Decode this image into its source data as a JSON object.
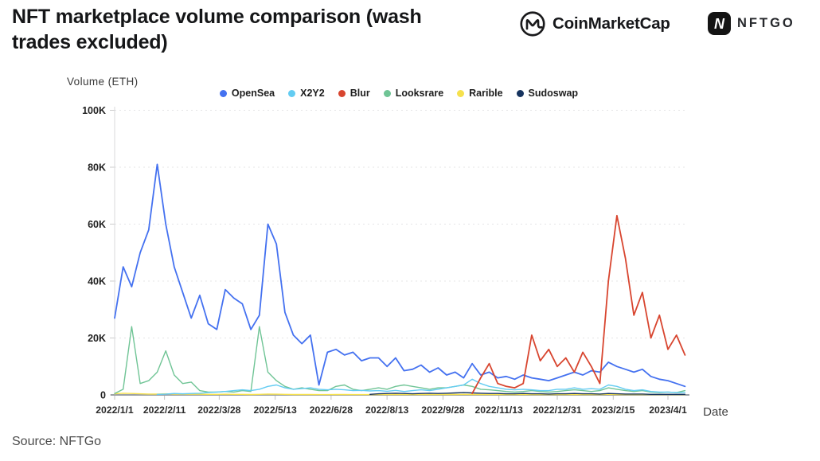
{
  "header": {
    "title": "NFT marketplace volume comparison (wash trades excluded)",
    "coinmarketcap": {
      "label": "CoinMarketCap"
    },
    "nftgo": {
      "icon_letter": "N",
      "label": "NFTGO"
    }
  },
  "footer": {
    "source": "Source: NFTGo"
  },
  "chart_data": {
    "type": "line",
    "title": "NFT marketplace volume comparison (wash trades excluded)",
    "ylabel": "Volume (ETH)",
    "xlabel": "Date",
    "ylim": [
      0,
      100000
    ],
    "grid": "horizontal-dashed",
    "legend_position": "top-center",
    "yticks": [
      0,
      20000,
      40000,
      60000,
      80000,
      100000
    ],
    "ytick_labels": [
      "0",
      "20K",
      "40K",
      "60K",
      "80K",
      "100K"
    ],
    "xtick_labels": [
      "2022/1/1",
      "2022/2/11",
      "2022/3/28",
      "2022/5/13",
      "2022/6/28",
      "2022/8/13",
      "2022/9/28",
      "2022/11/13",
      "2022/12/31",
      "2023/2/15",
      "2023/4/1"
    ],
    "x": [
      "2022/1/1",
      "2022/1/8",
      "2022/1/15",
      "2022/1/22",
      "2022/1/29",
      "2022/2/5",
      "2022/2/12",
      "2022/2/19",
      "2022/2/26",
      "2022/3/5",
      "2022/3/12",
      "2022/3/19",
      "2022/3/26",
      "2022/4/2",
      "2022/4/9",
      "2022/4/16",
      "2022/4/23",
      "2022/4/30",
      "2022/5/7",
      "2022/5/14",
      "2022/5/21",
      "2022/5/28",
      "2022/6/4",
      "2022/6/11",
      "2022/6/18",
      "2022/6/25",
      "2022/7/2",
      "2022/7/9",
      "2022/7/16",
      "2022/7/23",
      "2022/7/30",
      "2022/8/6",
      "2022/8/13",
      "2022/8/20",
      "2022/8/27",
      "2022/9/3",
      "2022/9/10",
      "2022/9/17",
      "2022/9/24",
      "2022/10/1",
      "2022/10/8",
      "2022/10/15",
      "2022/10/22",
      "2022/10/29",
      "2022/11/5",
      "2022/11/12",
      "2022/11/19",
      "2022/11/26",
      "2022/12/3",
      "2022/12/10",
      "2022/12/17",
      "2022/12/24",
      "2022/12/31",
      "2023/1/7",
      "2023/1/14",
      "2023/1/21",
      "2023/1/28",
      "2023/2/4",
      "2023/2/11",
      "2023/2/18",
      "2023/2/25",
      "2023/3/4",
      "2023/3/11",
      "2023/3/18",
      "2023/3/25",
      "2023/4/1",
      "2023/4/8",
      "2023/4/15"
    ],
    "series": [
      {
        "name": "OpenSea",
        "color": "#4471f0",
        "values": [
          27000,
          45000,
          38000,
          50000,
          58000,
          81000,
          60000,
          45000,
          36000,
          27000,
          35000,
          25000,
          23000,
          37000,
          34000,
          32000,
          23000,
          28000,
          60000,
          53000,
          29000,
          21000,
          18000,
          21000,
          3500,
          15000,
          16000,
          14000,
          15000,
          12000,
          13000,
          13000,
          10000,
          13000,
          8500,
          9000,
          10500,
          8000,
          9500,
          7000,
          8000,
          6000,
          11000,
          7000,
          8000,
          6000,
          6500,
          5500,
          7000,
          6000,
          5500,
          5000,
          6000,
          7000,
          8000,
          7000,
          8500,
          8000,
          11500,
          10000,
          9000,
          8000,
          9000,
          6500,
          5500,
          5000,
          4000,
          3000
        ]
      },
      {
        "name": "X2Y2",
        "color": "#63ccf2",
        "values": [
          null,
          null,
          null,
          null,
          null,
          200,
          300,
          500,
          400,
          500,
          600,
          800,
          1000,
          1200,
          1500,
          1800,
          1500,
          2000,
          3000,
          3500,
          2500,
          2000,
          2200,
          2500,
          2000,
          1800,
          2000,
          1800,
          1500,
          1600,
          1400,
          1500,
          1300,
          1600,
          1200,
          1500,
          1800,
          1500,
          2000,
          2500,
          3000,
          3500,
          5500,
          4000,
          3000,
          2500,
          2000,
          1800,
          2000,
          1800,
          1500,
          1500,
          2000,
          2000,
          2500,
          2000,
          2200,
          2000,
          3500,
          3000,
          2000,
          1500,
          1800,
          1200,
          1000,
          1000,
          800,
          800
        ]
      },
      {
        "name": "Blur",
        "color": "#d8452f",
        "values": [
          null,
          null,
          null,
          null,
          null,
          null,
          null,
          null,
          null,
          null,
          null,
          null,
          null,
          null,
          null,
          null,
          null,
          null,
          null,
          null,
          null,
          null,
          null,
          null,
          null,
          null,
          null,
          null,
          null,
          null,
          null,
          null,
          null,
          null,
          null,
          null,
          null,
          null,
          null,
          null,
          null,
          null,
          500,
          6000,
          11000,
          4000,
          3000,
          2500,
          4000,
          21000,
          12000,
          16000,
          10000,
          13000,
          8000,
          15000,
          10000,
          4000,
          40000,
          63000,
          48000,
          28000,
          36000,
          20000,
          28000,
          16000,
          21000,
          14000
        ]
      },
      {
        "name": "Looksrare",
        "color": "#6fc495",
        "values": [
          500,
          2000,
          24000,
          4000,
          5000,
          8000,
          15500,
          7000,
          4000,
          4500,
          1500,
          1000,
          1000,
          1200,
          1000,
          1500,
          1200,
          24000,
          8000,
          5000,
          3000,
          2000,
          2500,
          2000,
          1500,
          1500,
          3000,
          3500,
          2000,
          1500,
          2000,
          2500,
          2000,
          3000,
          3500,
          3000,
          2500,
          2000,
          2500,
          2500,
          3000,
          3500,
          3000,
          2000,
          1800,
          1500,
          1200,
          1000,
          1200,
          1500,
          1200,
          1000,
          1200,
          1500,
          1800,
          1500,
          1200,
          1500,
          2500,
          2000,
          1500,
          1200,
          1500,
          1000,
          800,
          1000,
          800,
          1500
        ]
      },
      {
        "name": "Rarible",
        "color": "#f6e14d",
        "values": [
          400,
          600,
          500,
          400,
          300,
          300,
          400,
          300,
          300,
          250,
          250,
          200,
          200,
          250,
          200,
          200,
          150,
          200,
          300,
          250,
          200,
          150,
          150,
          150,
          100,
          100,
          150,
          150,
          100,
          100,
          100,
          150,
          100,
          150,
          100,
          100,
          150,
          100,
          100,
          150,
          150,
          200,
          150,
          100,
          100,
          100,
          100,
          100,
          100,
          100,
          100,
          100,
          150,
          150,
          150,
          100,
          100,
          100,
          200,
          150,
          100,
          100,
          100,
          100,
          100,
          100,
          100,
          100
        ]
      },
      {
        "name": "Sudoswap",
        "color": "#16335f",
        "values": [
          null,
          null,
          null,
          null,
          null,
          null,
          null,
          null,
          null,
          null,
          null,
          null,
          null,
          null,
          null,
          null,
          null,
          null,
          null,
          null,
          null,
          null,
          null,
          null,
          null,
          null,
          null,
          null,
          null,
          null,
          200,
          400,
          500,
          600,
          500,
          400,
          500,
          600,
          500,
          600,
          700,
          800,
          700,
          600,
          500,
          500,
          400,
          400,
          500,
          400,
          400,
          300,
          400,
          400,
          500,
          400,
          400,
          300,
          500,
          400,
          300,
          300,
          300,
          200,
          200,
          200,
          200,
          200
        ]
      }
    ]
  }
}
